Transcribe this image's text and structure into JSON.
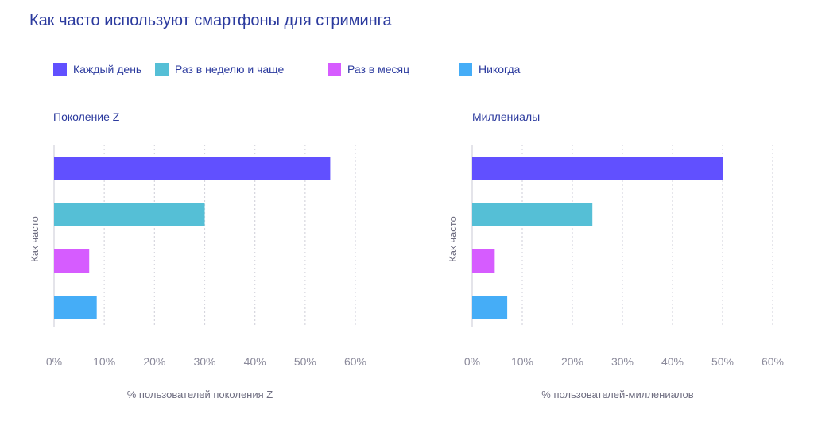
{
  "title": "Как часто используют смартфоны для стриминга",
  "legend": [
    {
      "label": "Каждый день",
      "color": "#6150ff"
    },
    {
      "label": "Раз в неделю и чаще",
      "color": "#55bfd6"
    },
    {
      "label": "Раз в месяц",
      "color": "#d65cff"
    },
    {
      "label": "Никогда",
      "color": "#45adf7"
    }
  ],
  "chart_data": [
    {
      "type": "bar",
      "orientation": "horizontal",
      "title": "Поколение Z",
      "categories": [
        "Каждый день",
        "Раз в неделю и чаще",
        "Раз в месяц",
        "Никогда"
      ],
      "values": [
        55,
        30,
        7,
        8.5
      ],
      "colors": [
        "#6150ff",
        "#55bfd6",
        "#d65cff",
        "#45adf7"
      ],
      "xlabel": "% пользователей поколения Z",
      "ylabel": "Как часто",
      "xlim": [
        0,
        60
      ],
      "xticks": [
        "0%",
        "10%",
        "20%",
        "30%",
        "40%",
        "50%",
        "60%"
      ],
      "grid": "vertical dotted",
      "legend": "top"
    },
    {
      "type": "bar",
      "orientation": "horizontal",
      "title": "Миллениалы",
      "categories": [
        "Каждый день",
        "Раз в неделю и чаще",
        "Раз в месяц",
        "Никогда"
      ],
      "values": [
        50,
        24,
        4.5,
        7
      ],
      "colors": [
        "#6150ff",
        "#55bfd6",
        "#d65cff",
        "#45adf7"
      ],
      "xlabel": "% пользователей-миллениалов",
      "ylabel": "Как часто",
      "xlim": [
        0,
        60
      ],
      "xticks": [
        "0%",
        "10%",
        "20%",
        "30%",
        "40%",
        "50%",
        "60%"
      ],
      "grid": "vertical dotted",
      "legend": "top"
    }
  ]
}
